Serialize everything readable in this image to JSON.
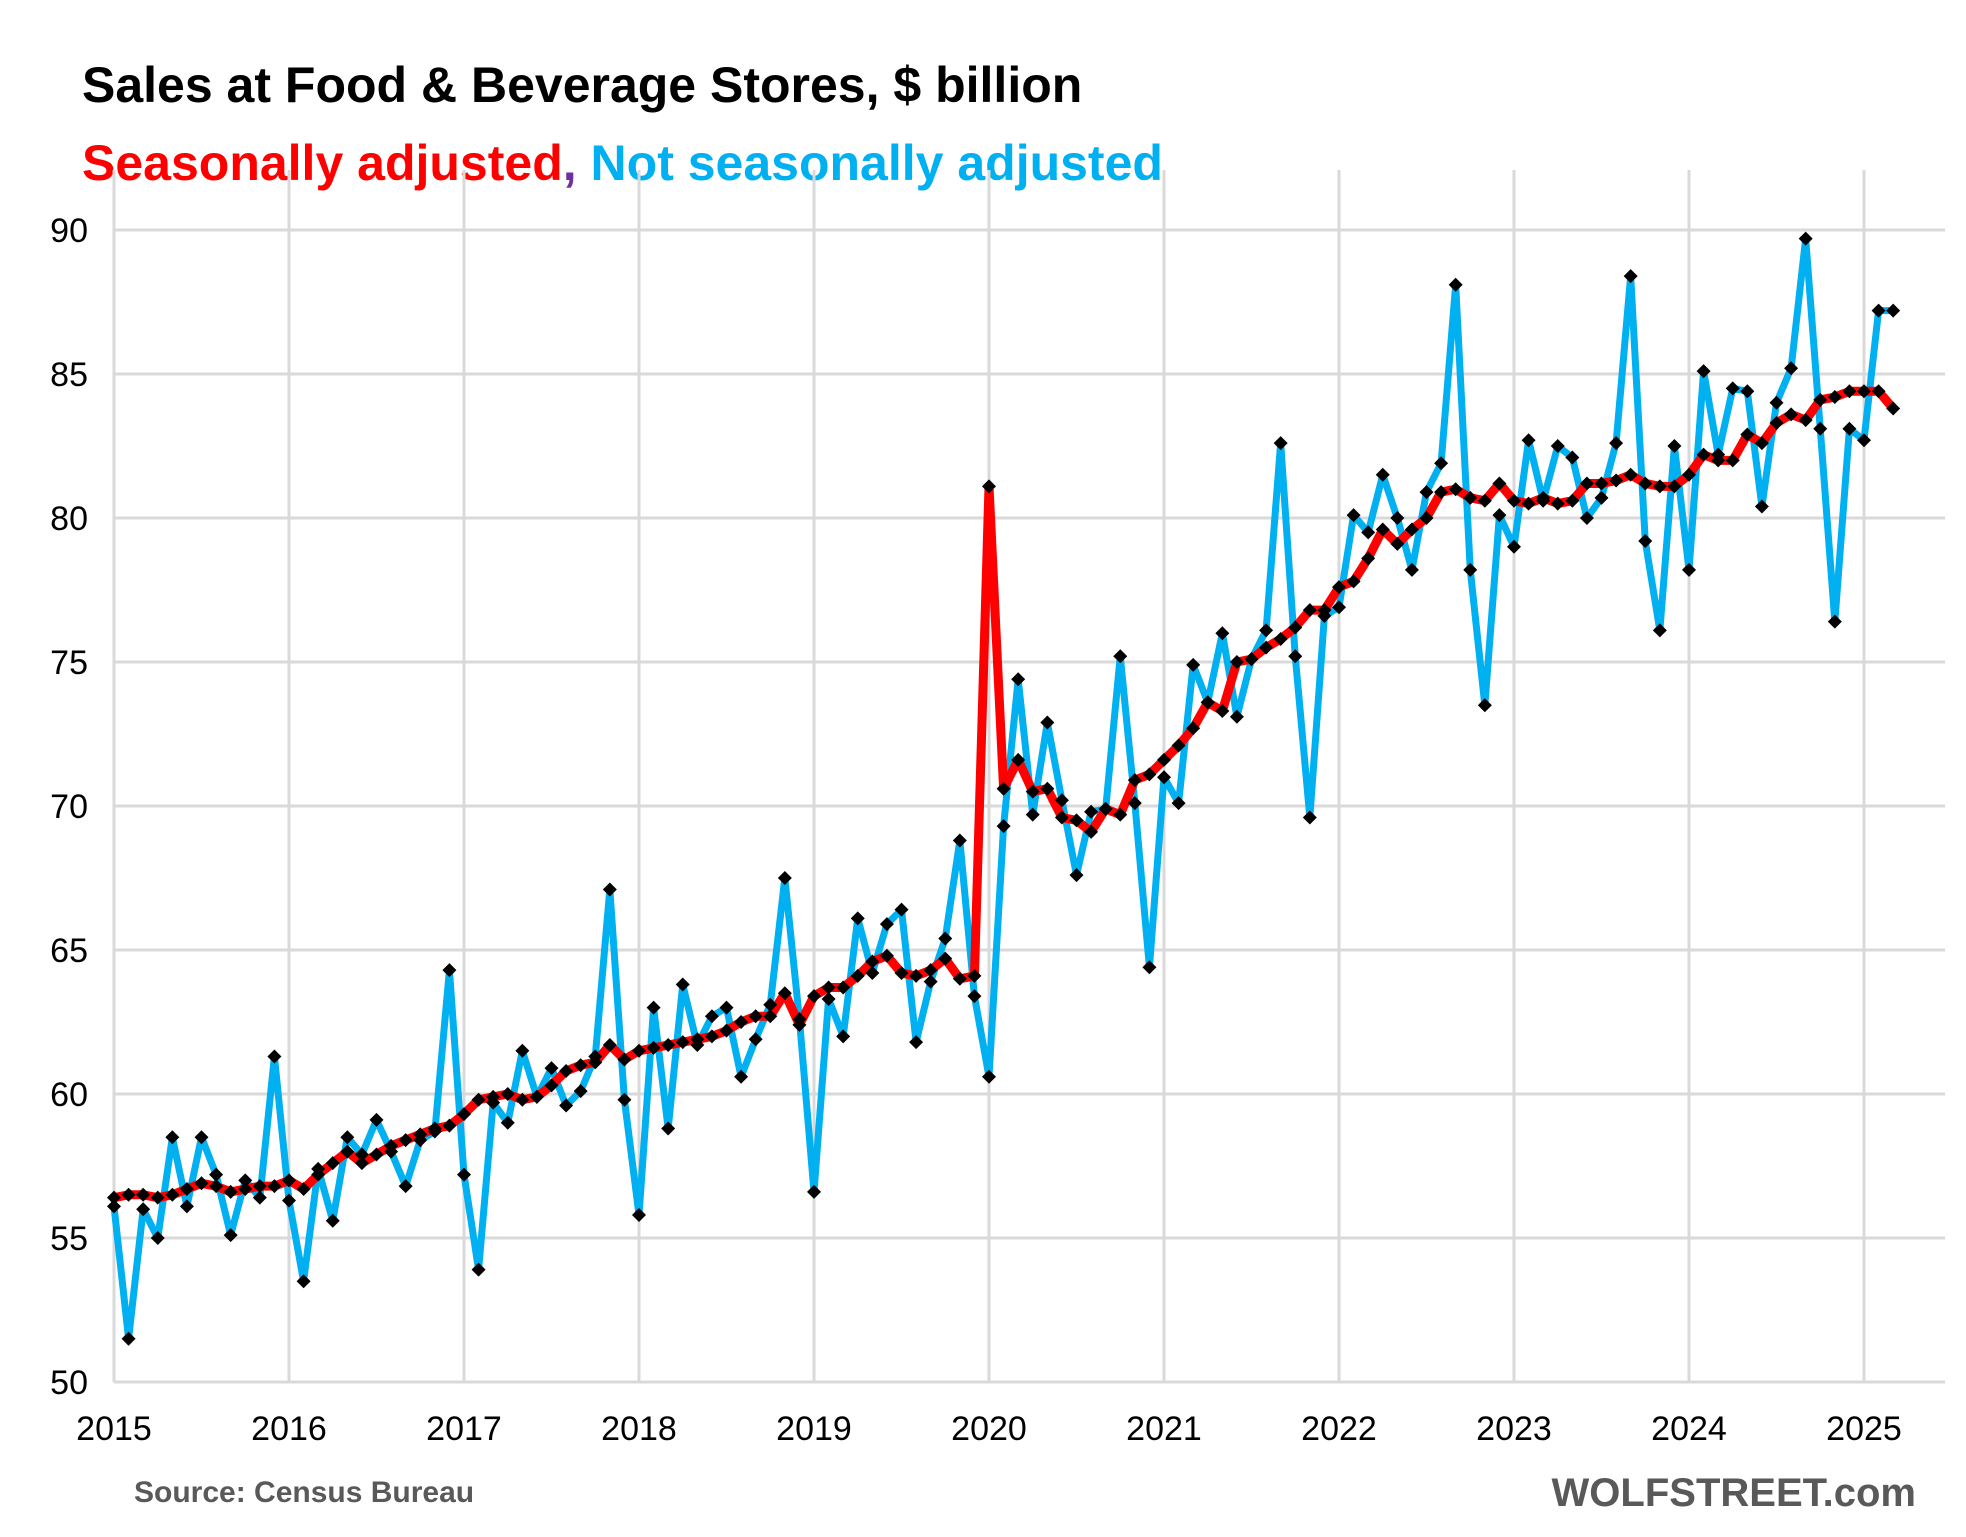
{
  "chart_data": {
    "type": "line",
    "title": "Sales at Food & Beverage Stores, $ billion",
    "subtitle_parts": [
      {
        "text": "Seasonally adjusted",
        "color": "#ff0000"
      },
      {
        "text": ",",
        "color": "#7030a0"
      },
      {
        "text": " Not seasonally adjusted",
        "color": "#00b0f0"
      }
    ],
    "xlabel": "",
    "ylabel": "",
    "ylim": [
      50,
      90
    ],
    "yticks": [
      50,
      55,
      60,
      65,
      70,
      75,
      80,
      85,
      90
    ],
    "xlim": [
      2015.0,
      2025.46
    ],
    "xticks": [
      "2015",
      "2016",
      "2017",
      "2018",
      "2019",
      "2020",
      "2021",
      "2022",
      "2023",
      "2024",
      "2025"
    ],
    "grid": true,
    "legend": "none (series named in subtitle)",
    "source": "Source: Census Bureau",
    "watermark": "WOLFSTREET.com",
    "x_start": "2015-01",
    "frequency": "monthly",
    "series": [
      {
        "name": "Seasonally adjusted",
        "color": "#ff0000",
        "values": [
          56.4,
          56.5,
          56.5,
          56.4,
          56.5,
          56.7,
          56.9,
          56.8,
          56.6,
          56.7,
          56.8,
          56.8,
          57.0,
          56.7,
          57.2,
          57.6,
          58.0,
          57.6,
          57.9,
          58.2,
          58.4,
          58.6,
          58.8,
          58.9,
          59.3,
          59.8,
          59.9,
          60.0,
          59.8,
          59.9,
          60.3,
          60.8,
          61.0,
          61.1,
          61.7,
          61.2,
          61.5,
          61.6,
          61.7,
          61.8,
          61.9,
          62.0,
          62.2,
          62.5,
          62.7,
          62.7,
          63.5,
          62.4,
          63.4,
          63.7,
          63.7,
          64.1,
          64.6,
          64.8,
          64.2,
          64.1,
          64.3,
          64.7,
          64.0,
          64.1,
          81.1,
          70.6,
          71.6,
          70.5,
          70.6,
          69.6,
          69.5,
          69.1,
          69.9,
          69.7,
          70.9,
          71.1,
          71.6,
          72.1,
          72.7,
          73.6,
          73.3,
          75.0,
          75.1,
          75.5,
          75.8,
          76.2,
          76.8,
          76.8,
          77.6,
          77.8,
          78.6,
          79.6,
          79.1,
          79.6,
          80.0,
          80.9,
          81.0,
          80.7,
          80.6,
          81.2,
          80.6,
          80.5,
          80.7,
          80.5,
          80.6,
          81.2,
          81.2,
          81.3,
          81.5,
          81.2,
          81.1,
          81.1,
          81.5,
          82.2,
          82.0,
          82.0,
          82.9,
          82.6,
          83.3,
          83.6,
          83.4,
          84.1,
          84.2,
          84.4,
          84.4,
          84.4,
          83.8
        ]
      },
      {
        "name": "Not seasonally adjusted",
        "color": "#00b0f0",
        "values": [
          56.1,
          51.5,
          56.0,
          55.0,
          58.5,
          56.1,
          58.5,
          57.2,
          55.1,
          57.0,
          56.4,
          61.3,
          56.3,
          53.5,
          57.4,
          55.6,
          58.5,
          57.9,
          59.1,
          58.0,
          56.8,
          58.4,
          58.7,
          64.3,
          57.2,
          53.9,
          59.7,
          59.0,
          61.5,
          59.9,
          60.9,
          59.6,
          60.1,
          61.3,
          67.1,
          59.8,
          55.8,
          63.0,
          58.8,
          63.8,
          61.7,
          62.7,
          63.0,
          60.6,
          61.9,
          63.1,
          67.5,
          62.6,
          56.6,
          63.3,
          62.0,
          66.1,
          64.2,
          65.9,
          66.4,
          61.8,
          63.9,
          65.4,
          68.8,
          63.4,
          60.6,
          69.3,
          74.4,
          69.7,
          72.9,
          70.2,
          67.6,
          69.8,
          69.9,
          75.2,
          70.1,
          64.4,
          71.0,
          70.1,
          74.9,
          73.6,
          76.0,
          73.1,
          75.1,
          76.1,
          82.6,
          75.2,
          69.6,
          76.6,
          76.9,
          80.1,
          79.5,
          81.5,
          80.0,
          78.2,
          80.9,
          81.9,
          88.1,
          78.2,
          73.5,
          80.1,
          79.0,
          82.7,
          80.6,
          82.5,
          82.1,
          80.0,
          80.7,
          82.6,
          88.4,
          79.2,
          76.1,
          82.5,
          78.2,
          85.1,
          82.2,
          84.5,
          84.4,
          80.4,
          84.0,
          85.2,
          89.7,
          83.1,
          76.4,
          83.1,
          82.7,
          87.2,
          87.2
        ]
      }
    ]
  }
}
